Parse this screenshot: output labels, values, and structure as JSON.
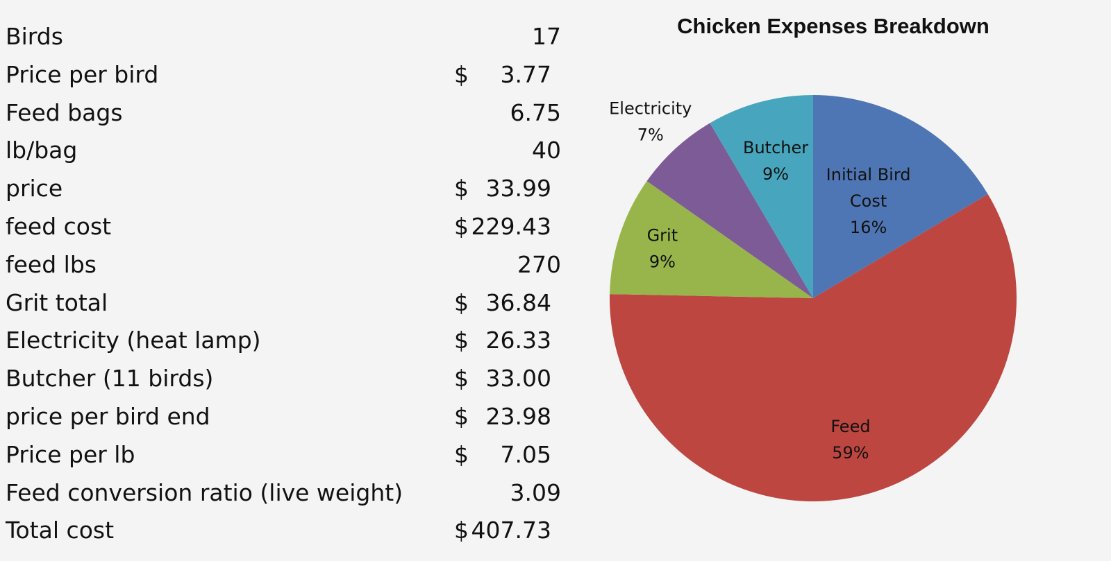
{
  "table": {
    "rows": [
      {
        "label": "Birds",
        "currency": "",
        "value": "17"
      },
      {
        "label": "Price per bird",
        "currency": "$",
        "value": "3.77"
      },
      {
        "label": "Feed bags",
        "currency": "",
        "value": "6.75"
      },
      {
        "label": "lb/bag",
        "currency": "",
        "value": "40"
      },
      {
        "label": "price",
        "currency": "$",
        "value": "33.99"
      },
      {
        "label": "feed cost",
        "currency": "$",
        "value": "229.43"
      },
      {
        "label": "feed lbs",
        "currency": "",
        "value": "270"
      },
      {
        "label": "Grit total",
        "currency": "$",
        "value": "36.84"
      },
      {
        "label": "Electricity (heat lamp)",
        "currency": "$",
        "value": "26.33"
      },
      {
        "label": "Butcher (11 birds)",
        "currency": "$",
        "value": "33.00"
      },
      {
        "label": "price per bird end",
        "currency": "$",
        "value": "23.98"
      },
      {
        "label": "Price per lb",
        "currency": "$",
        "value": "7.05"
      },
      {
        "label": "Feed conversion ratio (live weight)",
        "currency": "",
        "value": "3.09"
      },
      {
        "label": "Total cost",
        "currency": "$",
        "value": "407.73"
      }
    ]
  },
  "chart_data": {
    "type": "pie",
    "title": "Chicken Expenses Breakdown",
    "start_angle_deg": 0,
    "direction": "clockwise",
    "slices": [
      {
        "name": "Initial Bird Cost",
        "value": 64.09,
        "percent_label": "16%",
        "color": "#4f76b4"
      },
      {
        "name": "Feed",
        "value": 229.43,
        "percent_label": "59%",
        "color": "#bd4641"
      },
      {
        "name": "Grit",
        "value": 36.84,
        "percent_label": "9%",
        "color": "#97b54a"
      },
      {
        "name": "Electricity",
        "value": 26.33,
        "percent_label": "7%",
        "color": "#7d5b97"
      },
      {
        "name": "Butcher",
        "value": 33.0,
        "percent_label": "9%",
        "color": "#47a6bd"
      }
    ]
  }
}
